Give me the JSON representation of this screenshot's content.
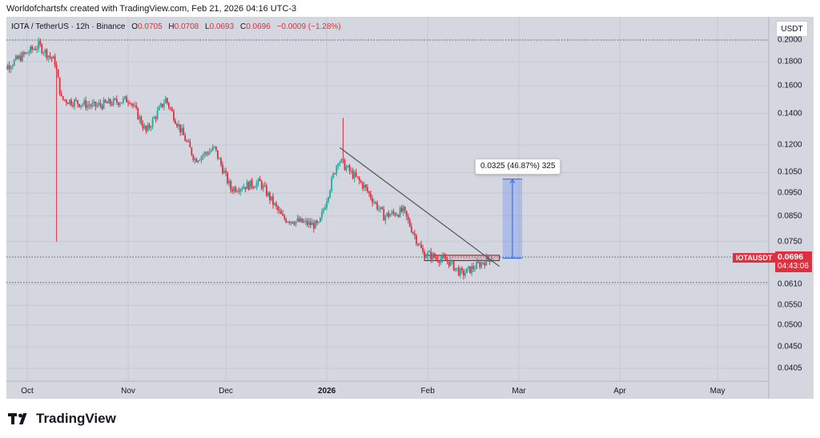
{
  "creator_line": "Worldofchartsfx created with TradingView.com, Feb 21, 2026 04:16 UTC-3",
  "header": {
    "symbol": "IOTA / TetherUS · 12h · Binance",
    "o_label": "O",
    "o_value": "0.0705",
    "h_label": "H",
    "h_value": "0.0708",
    "l_label": "L",
    "l_value": "0.0693",
    "c_label": "C",
    "c_value": "0.0696",
    "change": "−0.0009 (−1.28%)"
  },
  "unit_button": "USDT",
  "price_tag": {
    "symbol": "IOTAUSDT",
    "price": "0.0696",
    "countdown": "04:43:06"
  },
  "measure_label": "0.0325 (46.87%) 325",
  "logo_text": "TradingView",
  "colors": {
    "up": "#26a69a",
    "down": "#e0303f",
    "trendline": "#505361",
    "measure": "#2962ff"
  },
  "chart_data": {
    "type": "candlestick",
    "symbol": "IOTAUSDT",
    "scale": "log",
    "y_ticks": [
      "0.2000",
      "0.1800",
      "0.1600",
      "0.1400",
      "0.1200",
      "0.1050",
      "0.0950",
      "0.0850",
      "0.0750",
      "0.0610",
      "0.0550",
      "0.0500",
      "0.0450",
      "0.0405"
    ],
    "x_ticks": [
      "Oct",
      "Nov",
      "Dec",
      "2026",
      "Feb",
      "Mar",
      "Apr",
      "May"
    ],
    "last_price": 0.0696,
    "segments": [
      {
        "from_date": "2025-09-22",
        "to_date": "2025-10-05",
        "from_price": 0.17,
        "to_price": 0.195
      },
      {
        "from_date": "2025-10-05",
        "to_date": "2025-10-10",
        "from_price": 0.195,
        "to_price": 0.18
      },
      {
        "from_date": "2025-10-10",
        "to_date": "2025-10-12",
        "from_price": 0.18,
        "to_price": 0.15
      },
      {
        "from_date": "2025-10-12",
        "to_date": "2025-10-22",
        "from_price": 0.15,
        "to_price": 0.145
      },
      {
        "from_date": "2025-10-22",
        "to_date": "2025-11-02",
        "from_price": 0.145,
        "to_price": 0.15
      },
      {
        "from_date": "2025-11-02",
        "to_date": "2025-11-07",
        "from_price": 0.15,
        "to_price": 0.128
      },
      {
        "from_date": "2025-11-07",
        "to_date": "2025-11-13",
        "from_price": 0.128,
        "to_price": 0.15
      },
      {
        "from_date": "2025-11-13",
        "to_date": "2025-11-22",
        "from_price": 0.15,
        "to_price": 0.112
      },
      {
        "from_date": "2025-11-22",
        "to_date": "2025-11-28",
        "from_price": 0.112,
        "to_price": 0.118
      },
      {
        "from_date": "2025-11-28",
        "to_date": "2025-12-03",
        "from_price": 0.118,
        "to_price": 0.097
      },
      {
        "from_date": "2025-12-03",
        "to_date": "2025-12-12",
        "from_price": 0.097,
        "to_price": 0.1
      },
      {
        "from_date": "2025-12-12",
        "to_date": "2025-12-19",
        "from_price": 0.1,
        "to_price": 0.084
      },
      {
        "from_date": "2025-12-19",
        "to_date": "2025-12-30",
        "from_price": 0.084,
        "to_price": 0.081
      },
      {
        "from_date": "2025-12-30",
        "to_date": "2026-01-05",
        "from_price": 0.081,
        "to_price": 0.112
      },
      {
        "from_date": "2026-01-05",
        "to_date": "2026-01-13",
        "from_price": 0.112,
        "to_price": 0.098
      },
      {
        "from_date": "2026-01-13",
        "to_date": "2026-01-19",
        "from_price": 0.098,
        "to_price": 0.085
      },
      {
        "from_date": "2026-01-19",
        "to_date": "2026-01-25",
        "from_price": 0.085,
        "to_price": 0.087
      },
      {
        "from_date": "2026-01-25",
        "to_date": "2026-01-31",
        "from_price": 0.087,
        "to_price": 0.071
      },
      {
        "from_date": "2026-01-31",
        "to_date": "2026-02-08",
        "from_price": 0.071,
        "to_price": 0.068
      },
      {
        "from_date": "2026-02-08",
        "to_date": "2026-02-12",
        "from_price": 0.068,
        "to_price": 0.064
      },
      {
        "from_date": "2026-02-12",
        "to_date": "2026-02-21",
        "from_price": 0.064,
        "to_price": 0.0696
      }
    ],
    "spikes": [
      {
        "date": "2025-10-10",
        "low": 0.075
      },
      {
        "date": "2026-01-06",
        "high": 0.137
      }
    ],
    "trendline": {
      "from_date": "2026-01-05",
      "from_price": 0.1185,
      "to_date": "2026-02-23",
      "to_price": 0.0665
    },
    "support_box": {
      "from_date": "2026-01-31",
      "to_date": "2026-02-23",
      "top": 0.0702,
      "bottom": 0.0684
    },
    "measurement": {
      "from_date": "2026-02-24",
      "to_date": "2026-03-02",
      "from_price": 0.0692,
      "to_price": 0.1017,
      "change": 0.0325,
      "percent": 46.87,
      "ticks": 325
    },
    "dotted_levels": [
      0.2,
      0.0696,
      0.0615
    ]
  }
}
